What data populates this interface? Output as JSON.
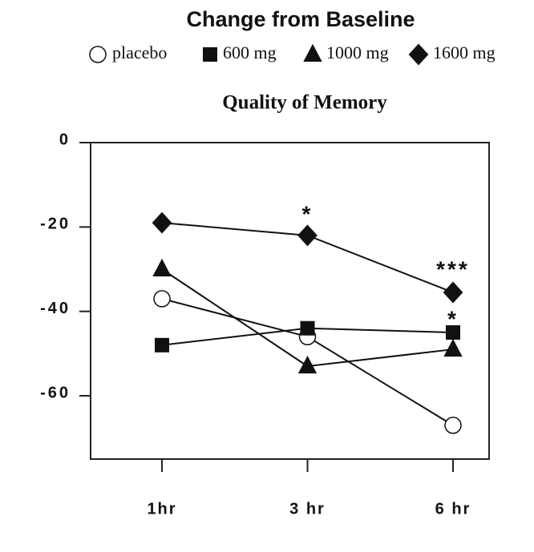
{
  "chart_data": {
    "type": "line",
    "title": "Change from Baseline",
    "subtitle": "Quality of Memory",
    "categories": [
      "1hr",
      "3 hr",
      "6 hr"
    ],
    "series": [
      {
        "name": "placebo",
        "color": "#111111",
        "marker": "open-circle",
        "values": [
          -37,
          -46,
          -67
        ]
      },
      {
        "name": "600 mg",
        "color": "#111111",
        "marker": "square",
        "values": [
          -48,
          -44,
          -45
        ]
      },
      {
        "name": "1000 mg",
        "color": "#111111",
        "marker": "triangle",
        "values": [
          -30,
          -53,
          -49
        ]
      },
      {
        "name": "1600 mg",
        "color": "#111111",
        "marker": "diamond",
        "values": [
          -19,
          -22,
          -35.5
        ]
      }
    ],
    "annotations": [
      "*",
      "***",
      "*"
    ],
    "ylim": [
      -75,
      0
    ],
    "yticks": [
      0,
      -20,
      -40,
      -60
    ],
    "grid": false,
    "legend": "top"
  }
}
